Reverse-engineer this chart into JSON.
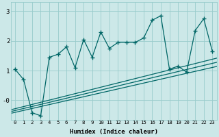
{
  "xlabel": "Humidex (Indice chaleur)",
  "ylabel": "",
  "bg_color": "#cce8e8",
  "line_color": "#006666",
  "grid_color": "#99cccc",
  "xlim": [
    -0.5,
    23.5
  ],
  "ylim": [
    -0.65,
    3.3
  ],
  "yticks": [
    0,
    1,
    2,
    3
  ],
  "ytick_labels": [
    "-0",
    "1",
    "2",
    "3"
  ],
  "xticks": [
    0,
    1,
    2,
    3,
    4,
    5,
    6,
    7,
    8,
    9,
    10,
    11,
    12,
    13,
    14,
    15,
    16,
    17,
    18,
    19,
    20,
    21,
    22,
    23
  ],
  "main_x": [
    0,
    1,
    2,
    3,
    4,
    5,
    6,
    7,
    8,
    9,
    10,
    11,
    12,
    13,
    14,
    15,
    16,
    17,
    18,
    19,
    20,
    21,
    22,
    23
  ],
  "main_y": [
    1.05,
    0.7,
    -0.42,
    -0.52,
    1.45,
    1.55,
    1.8,
    1.1,
    2.05,
    1.45,
    2.3,
    1.75,
    1.95,
    1.95,
    1.95,
    2.1,
    2.7,
    2.85,
    1.05,
    1.15,
    0.95,
    2.35,
    2.75,
    1.65
  ],
  "trend1_x": [
    -0.5,
    23.5
  ],
  "trend1_y": [
    -0.32,
    1.42
  ],
  "trend2_x": [
    -0.5,
    23.5
  ],
  "trend2_y": [
    -0.38,
    1.28
  ],
  "trend3_x": [
    -0.5,
    23.5
  ],
  "trend3_y": [
    -0.44,
    1.14
  ]
}
